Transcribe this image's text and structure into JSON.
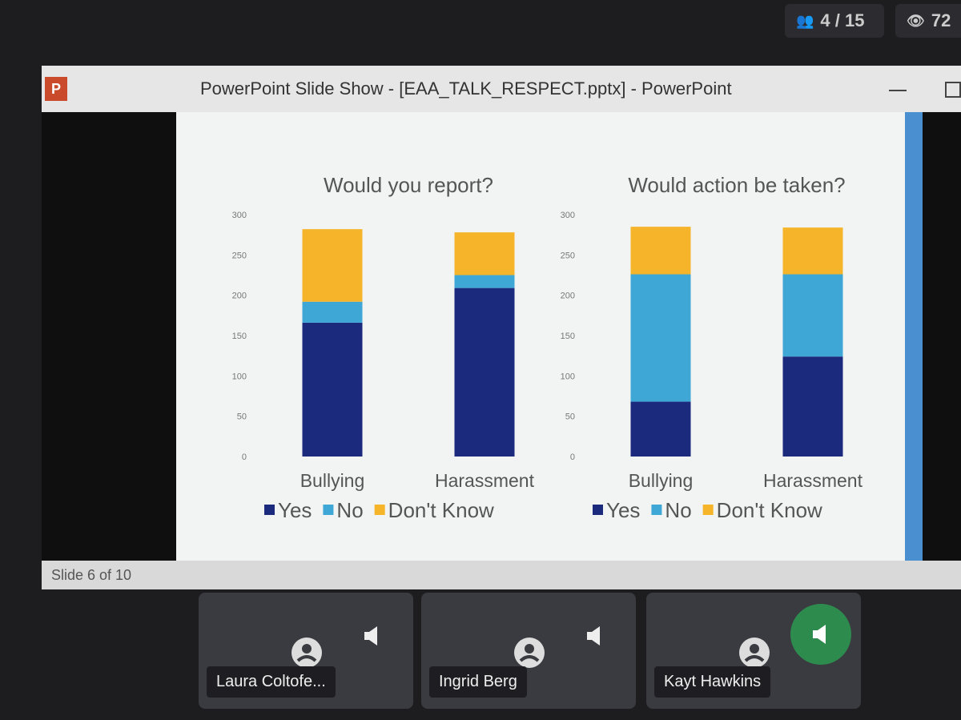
{
  "top_bar": {
    "participants": "4 / 15",
    "viewers": "72"
  },
  "window": {
    "title": "PowerPoint Slide Show - [EAA_TALK_RESPECT.pptx] - PowerPoint",
    "status": "Slide 6 of 10"
  },
  "chart_data": [
    {
      "type": "bar",
      "stacked": true,
      "title": "Would you report?",
      "categories": [
        "Bullying",
        "Harassment"
      ],
      "series": [
        {
          "name": "Yes",
          "color": "#1b2a7c",
          "values": [
            166,
            209
          ]
        },
        {
          "name": "No",
          "color": "#3fa7d6",
          "values": [
            26,
            16
          ]
        },
        {
          "name": "Don't Know",
          "color": "#f5b42a",
          "values": [
            90,
            53
          ]
        }
      ],
      "ylim": [
        0,
        300
      ],
      "yticks": [
        0,
        50,
        100,
        150,
        200,
        250,
        300
      ],
      "grid": false,
      "legend": "bottom"
    },
    {
      "type": "bar",
      "stacked": true,
      "title": "Would action be taken?",
      "categories": [
        "Bullying",
        "Harassment"
      ],
      "series": [
        {
          "name": "Yes",
          "color": "#1b2a7c",
          "values": [
            68,
            124
          ]
        },
        {
          "name": "No",
          "color": "#3fa7d6",
          "values": [
            158,
            102
          ]
        },
        {
          "name": "Don't Know",
          "color": "#f5b42a",
          "values": [
            59,
            58
          ]
        }
      ],
      "ylim": [
        0,
        300
      ],
      "yticks": [
        0,
        50,
        100,
        150,
        200,
        250,
        300
      ],
      "grid": false,
      "legend": "bottom"
    }
  ],
  "participants": [
    {
      "name": "Laura Coltofe..."
    },
    {
      "name": "Ingrid Berg"
    },
    {
      "name": "Kayt Hawkins"
    }
  ]
}
